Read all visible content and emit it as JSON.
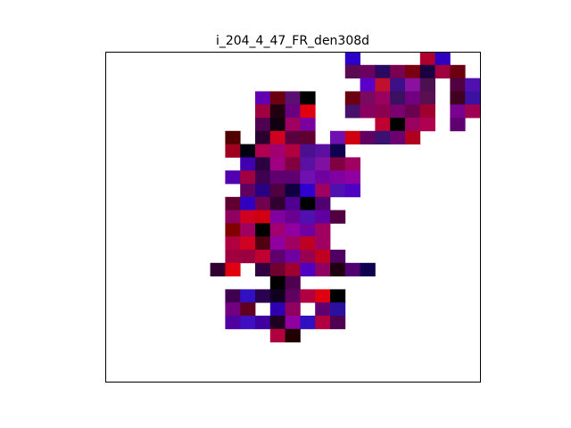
{
  "chart_data": {
    "type": "heatmap",
    "title": "i_204_4_47_FR_den308d",
    "grid_size": 25,
    "axes_visible": false,
    "background_color": "#ffffff",
    "frame_color": "#000000",
    "cells": [
      [
        16,
        0,
        "#2c00c8"
      ],
      [
        21,
        0,
        "#b00030"
      ],
      [
        22,
        0,
        "#3000c0"
      ],
      [
        16,
        1,
        "#5a0a52"
      ],
      [
        17,
        1,
        "#6a0060"
      ],
      [
        18,
        1,
        "#2a0a60"
      ],
      [
        19,
        1,
        "#7a0050"
      ],
      [
        20,
        1,
        "#7a0010"
      ],
      [
        21,
        1,
        "#1a0040"
      ],
      [
        22,
        1,
        "#a00040"
      ],
      [
        23,
        1,
        "#6a0010"
      ],
      [
        17,
        2,
        "#5a00c8"
      ],
      [
        18,
        2,
        "#c0102e"
      ],
      [
        19,
        2,
        "#3c1088"
      ],
      [
        20,
        2,
        "#8a10a0"
      ],
      [
        21,
        2,
        "#4c1050"
      ],
      [
        23,
        2,
        "#520040"
      ],
      [
        24,
        2,
        "#5010b0"
      ],
      [
        10,
        3,
        "#6000b0"
      ],
      [
        11,
        3,
        "#6a0010"
      ],
      [
        12,
        3,
        "#5a1070"
      ],
      [
        13,
        3,
        "#000000"
      ],
      [
        16,
        3,
        "#6a0010"
      ],
      [
        17,
        3,
        "#7a0a60"
      ],
      [
        18,
        3,
        "#9a0060"
      ],
      [
        19,
        3,
        "#3a1060"
      ],
      [
        20,
        3,
        "#700080"
      ],
      [
        21,
        3,
        "#5a1050"
      ],
      [
        23,
        3,
        "#400020"
      ],
      [
        24,
        3,
        "#3c10a0"
      ],
      [
        10,
        4,
        "#a00040"
      ],
      [
        11,
        4,
        "#200010"
      ],
      [
        12,
        4,
        "#6a0080"
      ],
      [
        13,
        4,
        "#e00010"
      ],
      [
        16,
        4,
        "#48106a"
      ],
      [
        17,
        4,
        "#8a0060"
      ],
      [
        18,
        4,
        "#8c0050"
      ],
      [
        19,
        4,
        "#7a0070"
      ],
      [
        20,
        4,
        "#6a0050"
      ],
      [
        21,
        4,
        "#a00030"
      ],
      [
        23,
        4,
        "#7a0090"
      ],
      [
        24,
        4,
        "#a00050"
      ],
      [
        10,
        5,
        "#500050"
      ],
      [
        11,
        5,
        "#100010"
      ],
      [
        12,
        5,
        "#a00060"
      ],
      [
        13,
        5,
        "#7a00a0"
      ],
      [
        18,
        5,
        "#c00030"
      ],
      [
        19,
        5,
        "#000000"
      ],
      [
        20,
        5,
        "#9a0060"
      ],
      [
        21,
        5,
        "#b00050"
      ],
      [
        23,
        5,
        "#600070"
      ],
      [
        8,
        6,
        "#500000"
      ],
      [
        10,
        6,
        "#2a0030"
      ],
      [
        11,
        6,
        "#d00020"
      ],
      [
        12,
        6,
        "#5a0040"
      ],
      [
        13,
        6,
        "#600030"
      ],
      [
        15,
        6,
        "#7010b0"
      ],
      [
        16,
        6,
        "#d00010"
      ],
      [
        17,
        6,
        "#600060"
      ],
      [
        18,
        6,
        "#3a1070"
      ],
      [
        19,
        6,
        "#6c0070"
      ],
      [
        20,
        6,
        "#b00020"
      ],
      [
        8,
        7,
        "#a00020"
      ],
      [
        9,
        7,
        "#000010"
      ],
      [
        10,
        7,
        "#b00050"
      ],
      [
        11,
        7,
        "#a00070"
      ],
      [
        12,
        7,
        "#b00040"
      ],
      [
        13,
        7,
        "#4a1090"
      ],
      [
        14,
        7,
        "#5c10a0"
      ],
      [
        15,
        7,
        "#100050"
      ],
      [
        9,
        8,
        "#4000b0"
      ],
      [
        10,
        8,
        "#2a0040"
      ],
      [
        11,
        8,
        "#a00080"
      ],
      [
        12,
        8,
        "#800040"
      ],
      [
        13,
        8,
        "#5a10a0"
      ],
      [
        14,
        8,
        "#8010a0"
      ],
      [
        15,
        8,
        "#800040"
      ],
      [
        16,
        8,
        "#a00060"
      ],
      [
        8,
        9,
        "#5000b0"
      ],
      [
        9,
        9,
        "#a00040"
      ],
      [
        10,
        9,
        "#400050"
      ],
      [
        11,
        9,
        "#600070"
      ],
      [
        12,
        9,
        "#600070"
      ],
      [
        13,
        9,
        "#7010b0"
      ],
      [
        14,
        9,
        "#7000a0"
      ],
      [
        15,
        9,
        "#8000a0"
      ],
      [
        16,
        9,
        "#9000a0"
      ],
      [
        9,
        10,
        "#600060"
      ],
      [
        10,
        10,
        "#2a0080"
      ],
      [
        11,
        10,
        "#500040"
      ],
      [
        12,
        10,
        "#100040"
      ],
      [
        13,
        10,
        "#3000d0"
      ],
      [
        14,
        10,
        "#a00060"
      ],
      [
        15,
        10,
        "#5010b0"
      ],
      [
        16,
        10,
        "#5000c0"
      ],
      [
        8,
        11,
        "#600030"
      ],
      [
        9,
        11,
        "#3000c0"
      ],
      [
        10,
        11,
        "#700050"
      ],
      [
        11,
        11,
        "#300030"
      ],
      [
        12,
        11,
        "#500090"
      ],
      [
        13,
        11,
        "#000000"
      ],
      [
        14,
        11,
        "#500070"
      ],
      [
        8,
        12,
        "#900060"
      ],
      [
        9,
        12,
        "#d00020"
      ],
      [
        10,
        12,
        "#d00010"
      ],
      [
        11,
        12,
        "#8000a0"
      ],
      [
        12,
        12,
        "#6a0090"
      ],
      [
        13,
        12,
        "#5010b0"
      ],
      [
        14,
        12,
        "#6000a0"
      ],
      [
        15,
        12,
        "#500040"
      ],
      [
        8,
        13,
        "#800000"
      ],
      [
        9,
        13,
        "#a00060"
      ],
      [
        10,
        13,
        "#000000"
      ],
      [
        11,
        13,
        "#a00070"
      ],
      [
        12,
        13,
        "#9000a0"
      ],
      [
        13,
        13,
        "#7000a0"
      ],
      [
        14,
        13,
        "#a00060"
      ],
      [
        8,
        14,
        "#b00040"
      ],
      [
        9,
        14,
        "#d00020"
      ],
      [
        10,
        14,
        "#500010"
      ],
      [
        11,
        14,
        "#9000a0"
      ],
      [
        12,
        14,
        "#a00060"
      ],
      [
        13,
        14,
        "#c00020"
      ],
      [
        14,
        14,
        "#a00060"
      ],
      [
        8,
        15,
        "#a00040"
      ],
      [
        9,
        15,
        "#9a0040"
      ],
      [
        10,
        15,
        "#c00030"
      ],
      [
        11,
        15,
        "#600070"
      ],
      [
        12,
        15,
        "#7000a0"
      ],
      [
        13,
        15,
        "#9a0050"
      ],
      [
        14,
        15,
        "#c00020"
      ],
      [
        15,
        15,
        "#500060"
      ],
      [
        7,
        16,
        "#300030"
      ],
      [
        8,
        16,
        "#e00010"
      ],
      [
        10,
        16,
        "#300040"
      ],
      [
        11,
        16,
        "#700030"
      ],
      [
        12,
        16,
        "#a00030"
      ],
      [
        13,
        16,
        "#5000c0"
      ],
      [
        14,
        16,
        "#900060"
      ],
      [
        15,
        16,
        "#200010"
      ],
      [
        16,
        16,
        "#500070"
      ],
      [
        17,
        16,
        "#100050"
      ],
      [
        11,
        17,
        "#000000"
      ],
      [
        12,
        17,
        "#500050"
      ],
      [
        8,
        18,
        "#400050"
      ],
      [
        9,
        18,
        "#3010c0"
      ],
      [
        10,
        18,
        "#2a0050"
      ],
      [
        11,
        18,
        "#100020"
      ],
      [
        12,
        18,
        "#600060"
      ],
      [
        13,
        18,
        "#b00040"
      ],
      [
        14,
        18,
        "#e00010"
      ],
      [
        15,
        18,
        "#000000"
      ],
      [
        8,
        19,
        "#700080"
      ],
      [
        9,
        19,
        "#600020"
      ],
      [
        11,
        19,
        "#3000b0"
      ],
      [
        12,
        19,
        "#900060"
      ],
      [
        14,
        19,
        "#600070"
      ],
      [
        15,
        19,
        "#2a10a0"
      ],
      [
        8,
        20,
        "#5000a0"
      ],
      [
        9,
        20,
        "#4010c0"
      ],
      [
        10,
        20,
        "#4000a0"
      ],
      [
        11,
        20,
        "#200020"
      ],
      [
        12,
        20,
        "#9000a0"
      ],
      [
        13,
        20,
        "#3010c0"
      ],
      [
        14,
        20,
        "#b00040"
      ],
      [
        15,
        20,
        "#500050"
      ],
      [
        11,
        21,
        "#b00040"
      ],
      [
        12,
        21,
        "#200000"
      ]
    ]
  }
}
